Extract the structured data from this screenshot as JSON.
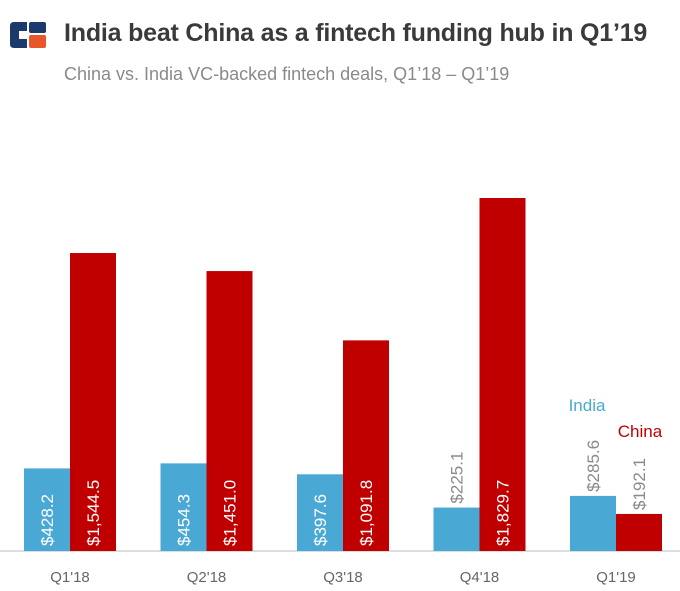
{
  "colors": {
    "india": "#4aa9d4",
    "china": "#c00000",
    "title": "#3a3a3a",
    "subtitle": "#8a8a8a",
    "axis": "#bbbbbb",
    "tick": "#666666",
    "logo_blue": "#1b3a6b",
    "logo_orange": "#e8572a"
  },
  "header": {
    "logo_icon": "cb-insights-logo-icon",
    "title": "India beat China as a fintech funding hub in Q1’19",
    "subtitle": "China vs. India VC-backed fintech deals, Q1’18 – Q1’19"
  },
  "chart_data": {
    "type": "bar",
    "title": "India beat China as a fintech funding hub in Q1’19",
    "subtitle": "China vs. India VC-backed fintech deals, Q1’18 – Q1’19",
    "categories": [
      "Q1'18",
      "Q2'18",
      "Q3'18",
      "Q4'18",
      "Q1'19"
    ],
    "series": [
      {
        "name": "India",
        "values": [
          428.2,
          454.3,
          397.6,
          225.1,
          285.6
        ],
        "labels": [
          "$428.2",
          "$454.3",
          "$397.6",
          "$225.1",
          "$285.6"
        ]
      },
      {
        "name": "China",
        "values": [
          1544.5,
          1451.0,
          1091.8,
          1829.7,
          192.1
        ],
        "labels": [
          "$1,544.5",
          "$1,451.0",
          "$1,091.8",
          "$1,829.7",
          "$192.1"
        ]
      }
    ],
    "ylim": [
      0,
      1829.7
    ],
    "xlabel": "",
    "ylabel": "",
    "grid": false,
    "legend": [
      "India",
      "China"
    ]
  }
}
